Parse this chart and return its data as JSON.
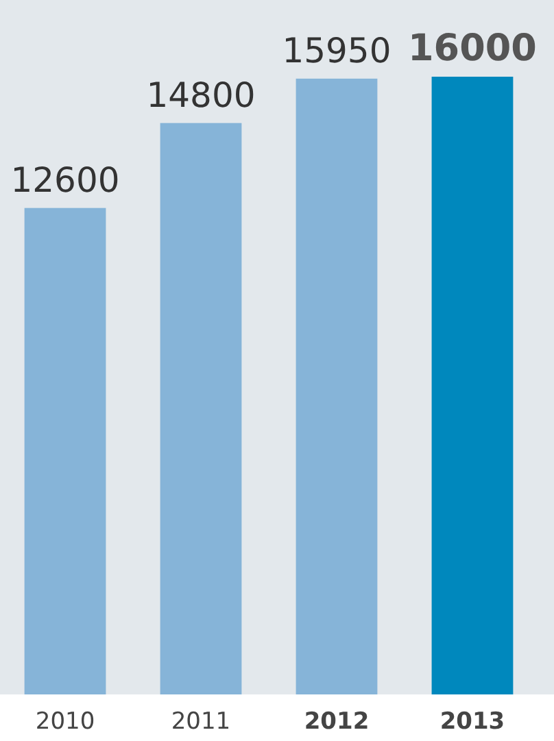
{
  "chart_data": {
    "type": "bar",
    "categories": [
      "2010",
      "2011",
      "2012",
      "2013"
    ],
    "values": [
      12600,
      14800,
      15950,
      16000
    ],
    "colors": [
      "#86b4d8",
      "#86b4d8",
      "#86b4d8",
      "#0088bd"
    ],
    "data_labels": true
  }
}
